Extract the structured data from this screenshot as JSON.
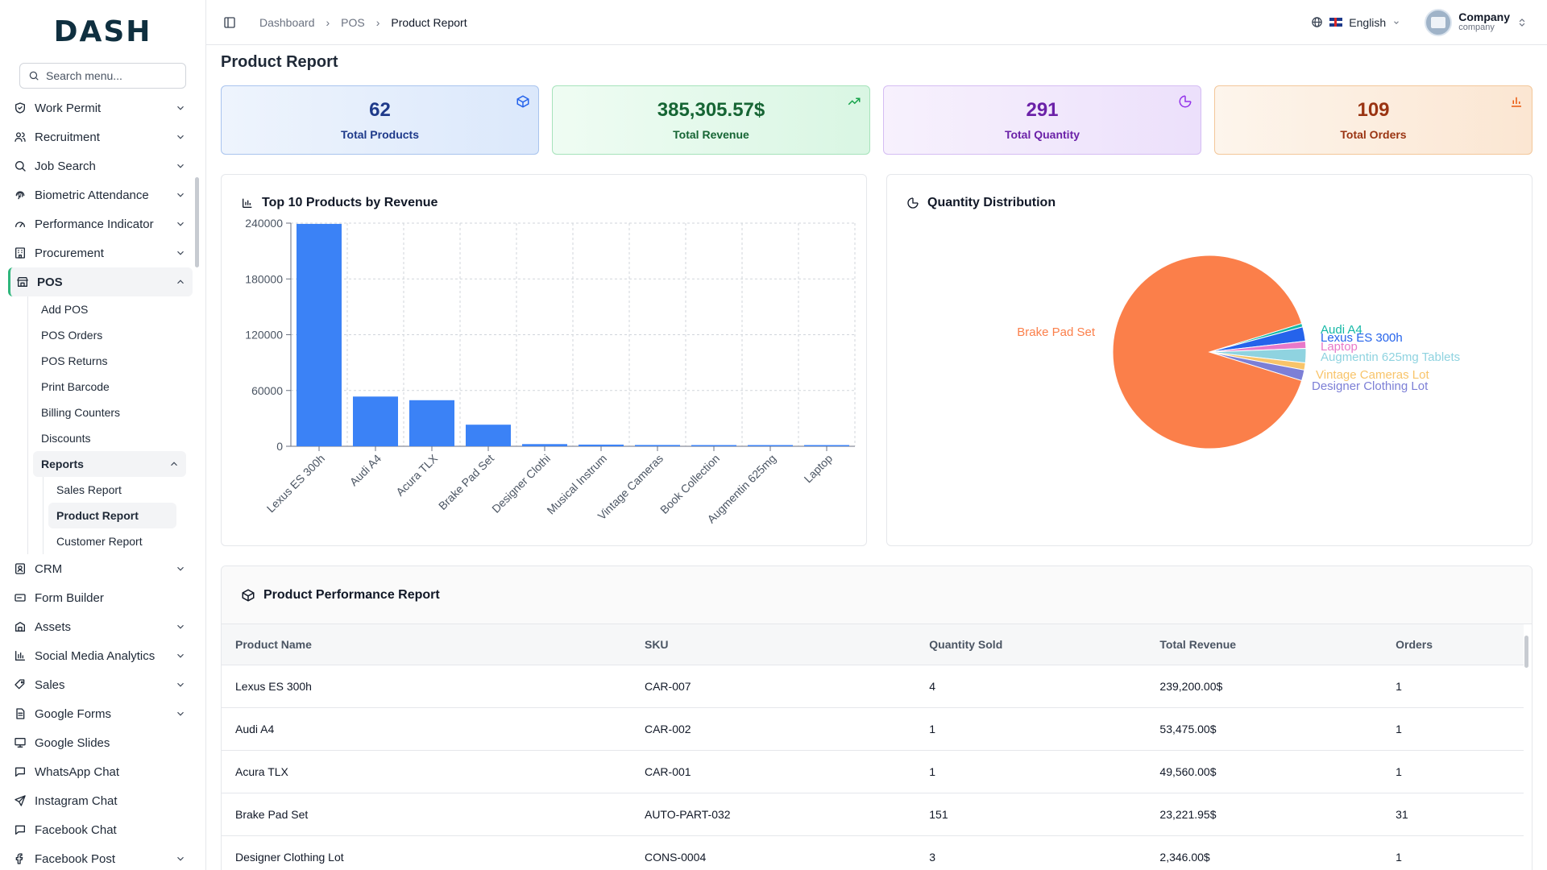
{
  "brand": {
    "logo_main": "DASH"
  },
  "search": {
    "placeholder": "Search menu..."
  },
  "sidebar": {
    "items": [
      {
        "label": "Work Permit",
        "icon": "shield-check-icon"
      },
      {
        "label": "Recruitment",
        "icon": "users-icon"
      },
      {
        "label": "Job Search",
        "icon": "search-icon"
      },
      {
        "label": "Biometric Attendance",
        "icon": "fingerprint-icon"
      },
      {
        "label": "Performance Indicator",
        "icon": "gauge-icon"
      },
      {
        "label": "Procurement",
        "icon": "building-icon"
      },
      {
        "label": "POS",
        "icon": "store-icon"
      }
    ],
    "pos_sub": [
      "Add POS",
      "POS Orders",
      "POS Returns",
      "Print Barcode",
      "Billing Counters",
      "Discounts"
    ],
    "reports_label": "Reports",
    "reports_sub": [
      "Sales Report",
      "Product Report",
      "Customer Report"
    ],
    "items_after": [
      {
        "label": "CRM",
        "icon": "contact-icon"
      },
      {
        "label": "Form Builder",
        "icon": "form-icon"
      },
      {
        "label": "Assets",
        "icon": "assets-icon"
      },
      {
        "label": "Social Media Analytics",
        "icon": "bar-chart-icon"
      },
      {
        "label": "Sales",
        "icon": "tags-icon"
      },
      {
        "label": "Google Forms",
        "icon": "doc-icon"
      },
      {
        "label": "Google Slides",
        "icon": "presentation-icon"
      },
      {
        "label": "WhatsApp Chat",
        "icon": "chat-icon"
      },
      {
        "label": "Instagram Chat",
        "icon": "send-icon"
      },
      {
        "label": "Facebook Chat",
        "icon": "chat-icon"
      },
      {
        "label": "Facebook Post",
        "icon": "facebook-icon"
      }
    ]
  },
  "breadcrumb": [
    "Dashboard",
    "POS",
    "Product Report"
  ],
  "topbar": {
    "language": "English",
    "user_name": "Company",
    "user_role": "company"
  },
  "page": {
    "title": "Product Report"
  },
  "stats": [
    {
      "value": "62",
      "label": "Total Products",
      "icon": "box-icon"
    },
    {
      "value": "385,305.57$",
      "label": "Total Revenue",
      "icon": "trending-up-icon"
    },
    {
      "value": "291",
      "label": "Total Quantity",
      "icon": "pie-chart-icon"
    },
    {
      "value": "109",
      "label": "Total Orders",
      "icon": "bar-chart-icon"
    }
  ],
  "panels": {
    "bar_title": "Top 10 Products by Revenue",
    "pie_title": "Quantity Distribution",
    "table_title": "Product Performance Report"
  },
  "chart_data": [
    {
      "type": "bar",
      "title": "Top 10 Products by Revenue",
      "categories": [
        "Lexus ES 300h",
        "Audi A4",
        "Acura TLX",
        "Brake Pad Set",
        "Designer Clothi",
        "Musical Instrum",
        "Vintage Cameras",
        "Book Collection",
        "Augmentin 625mg",
        "Laptop"
      ],
      "values": [
        239200,
        53475,
        49560,
        23221.95,
        2346,
        1800,
        1400,
        1200,
        900,
        700
      ],
      "yticks": [
        "0",
        "60000",
        "120000",
        "180000",
        "240000"
      ],
      "ylim": [
        0,
        240000
      ],
      "grid": true,
      "color": "#3b82f6"
    },
    {
      "type": "pie",
      "title": "Quantity Distribution",
      "slices": [
        {
          "label": "Brake Pad Set",
          "value": 151,
          "color": "#fb7f4a"
        },
        {
          "label": "Audi A4",
          "value": 1,
          "color": "#14b8a6"
        },
        {
          "label": "Lexus ES 300h",
          "value": 4,
          "color": "#2563eb"
        },
        {
          "label": "Laptop",
          "value": 2,
          "color": "#e879c9"
        },
        {
          "label": "Augmentin 625mg Tablets",
          "value": 4,
          "color": "#8fd3e0"
        },
        {
          "label": "Vintage Cameras Lot",
          "value": 2,
          "color": "#f8c46a"
        },
        {
          "label": "Designer Clothing Lot",
          "value": 3,
          "color": "#7c7fd6"
        }
      ]
    }
  ],
  "table": {
    "columns": [
      "Product Name",
      "SKU",
      "Quantity Sold",
      "Total Revenue",
      "Orders"
    ],
    "rows": [
      [
        "Lexus ES 300h",
        "CAR-007",
        "4",
        "239,200.00$",
        "1"
      ],
      [
        "Audi A4",
        "CAR-002",
        "1",
        "53,475.00$",
        "1"
      ],
      [
        "Acura TLX",
        "CAR-001",
        "1",
        "49,560.00$",
        "1"
      ],
      [
        "Brake Pad Set",
        "AUTO-PART-032",
        "151",
        "23,221.95$",
        "31"
      ],
      [
        "Designer Clothing Lot",
        "CONS-0004",
        "3",
        "2,346.00$",
        "1"
      ]
    ]
  }
}
